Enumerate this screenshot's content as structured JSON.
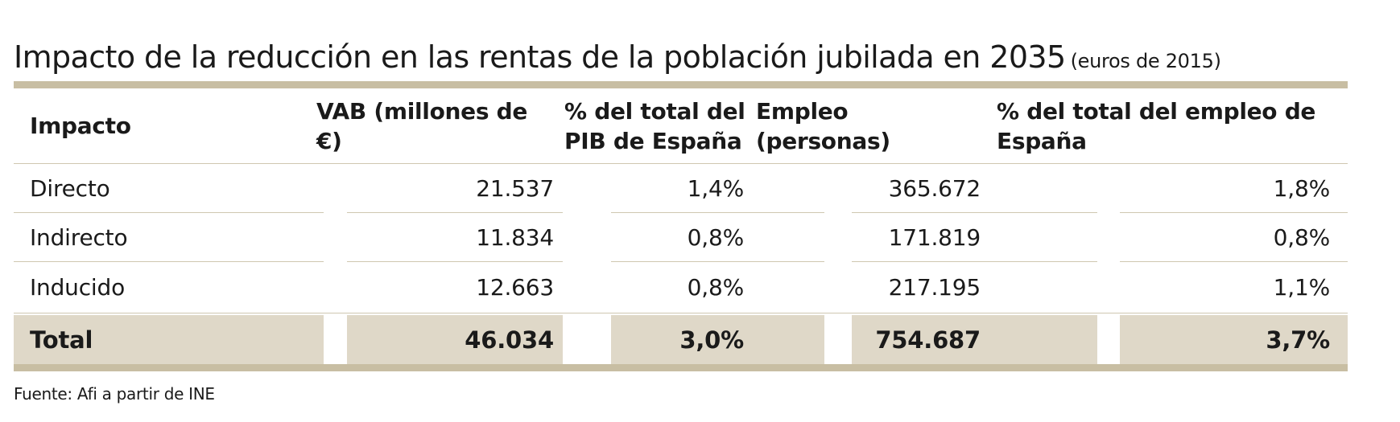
{
  "title": {
    "main": "Impacto de la reducción en las rentas de la población jubilada en 2035",
    "units": "(euros de 2015)"
  },
  "table": {
    "headers": [
      "Impacto",
      "VAB (millones de €)",
      "% del total del PIB de España",
      "Empleo (personas)",
      "% del total del empleo de España"
    ],
    "rows": [
      [
        "Directo",
        "21.537",
        "1,4%",
        "365.672",
        "1,8%"
      ],
      [
        "Indirecto",
        "11.834",
        "0,8%",
        "171.819",
        "0,8%"
      ],
      [
        "Inducido",
        "12.663",
        "0,8%",
        "217.195",
        "1,1%"
      ]
    ],
    "total": [
      "Total",
      "46.034",
      "3,0%",
      "754.687",
      "3,7%"
    ]
  },
  "source": "Fuente: Afi a partir de INE",
  "colors": {
    "rule": "#c8bea3",
    "total_background": "#dfd8c8",
    "separator": "#cfc7b0"
  }
}
